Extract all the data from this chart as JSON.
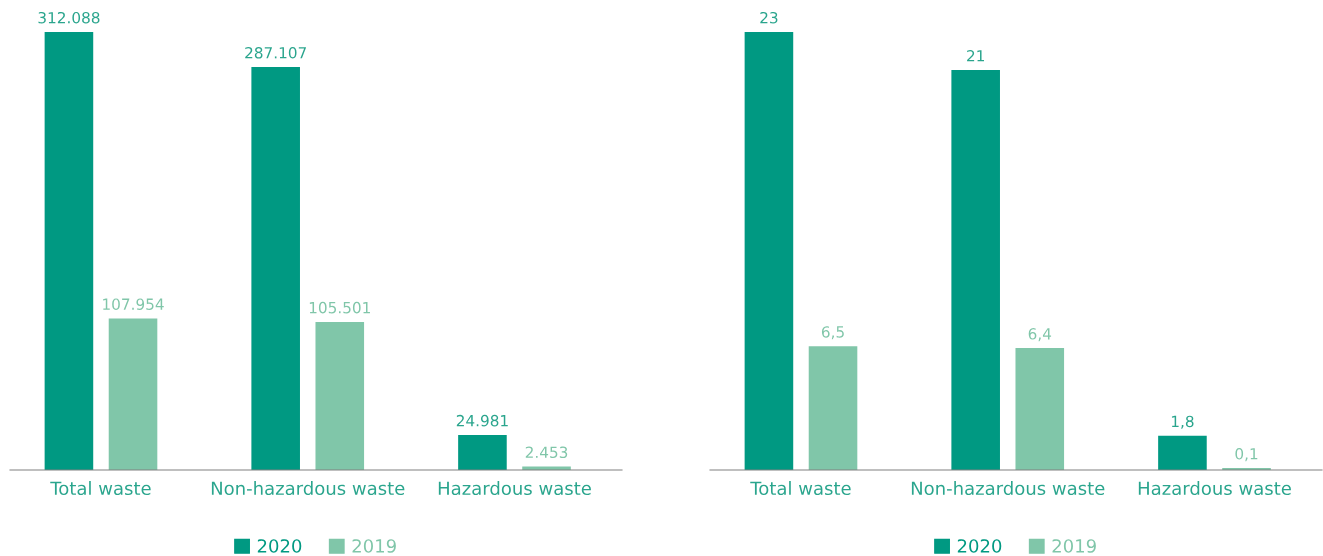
{
  "chart_data": [
    {
      "type": "bar",
      "categories": [
        "Total waste",
        "Non-hazardous waste",
        "Hazardous waste"
      ],
      "series": [
        {
          "name": "2020",
          "color": "#009982",
          "values": [
            312088,
            287107,
            24981
          ],
          "value_labels": [
            "312.088",
            "287.107",
            "24.981"
          ]
        },
        {
          "name": "2019",
          "color": "#80c6a9",
          "values": [
            107954,
            105501,
            2453
          ],
          "value_labels": [
            "107.954",
            "105.501",
            "2.453"
          ]
        }
      ],
      "ylim": [
        0,
        312088
      ],
      "tick_labels": "x",
      "grid": false,
      "legend": "bottom"
    },
    {
      "type": "bar",
      "categories": [
        "Total waste",
        "Non-hazardous waste",
        "Hazardous waste"
      ],
      "series": [
        {
          "name": "2020",
          "color": "#009982",
          "values": [
            23,
            21,
            1.8
          ],
          "value_labels": [
            "23",
            "21",
            "1,8"
          ]
        },
        {
          "name": "2019",
          "color": "#80c6a9",
          "values": [
            6.5,
            6.4,
            0.1
          ],
          "value_labels": [
            "6,5",
            "6,4",
            "0,1"
          ]
        }
      ],
      "ylim": [
        0,
        23
      ],
      "tick_labels": "x",
      "grid": false,
      "legend": "bottom"
    }
  ]
}
